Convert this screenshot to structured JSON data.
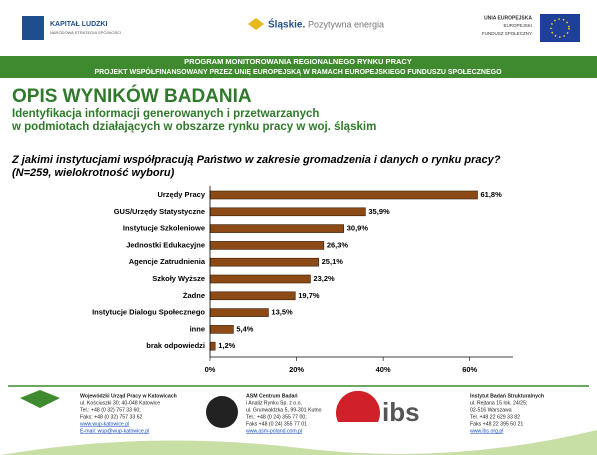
{
  "header": {
    "left_logo": [
      "KAPITAŁ LUDZKI",
      "NARODOWA STRATEGIA SPÓJNOŚCI"
    ],
    "center_logo": [
      "Śląskie.",
      "Pozytywna energia"
    ],
    "right_logo": [
      "UNIA EUROPEJSKA",
      "EUROPEJSKI",
      "FUNDUSZ SPOŁECZNY"
    ],
    "banner": [
      "PROGRAM MONITOROWANIA REGIONALNEGO RYNKU PRACY",
      "PROJEKT WSPÓŁFINANSOWANY PRZEZ UNIĘ EUROPEJSKĄ W RAMACH EUROPEJSKIEGO FUNDUSZU SPOŁECZNEGO"
    ],
    "title": "OPIS WYNIKÓW BADANIA",
    "subtitle": [
      "Identyfikacja informacji generowanych i przetwarzanych",
      "w podmiotach działających w obszarze rynku pracy w woj. śląskim"
    ]
  },
  "chart_data": {
    "type": "barh",
    "title": [
      "Z jakimi instytucjami współpracują Państwo w zakresie gromadzenia i danych o rynku pracy?",
      "(N=259, wielokrotność wyboru)"
    ],
    "categories": [
      "Urzędy Pracy",
      "GUS/Urzędy Statystyczne",
      "Instytucje Szkoleniowe",
      "Jednostki Edukacyjne",
      "Agencje Zatrudnienia",
      "Szkoły Wyższe",
      "Żadne",
      "Instytucje Dialogu Społecznego",
      "inne",
      "brak odpowiedzi"
    ],
    "values": [
      61.8,
      35.9,
      30.9,
      26.3,
      25.1,
      23.2,
      19.7,
      13.5,
      5.4,
      1.2
    ],
    "value_labels": [
      "61,8%",
      "35,9%",
      "30,9%",
      "26,3%",
      "25,1%",
      "23,2%",
      "19,7%",
      "13,5%",
      "5,4%",
      "1,2%"
    ],
    "color": "#8b4a16",
    "xlim": [
      0,
      70
    ],
    "xticks": [
      {
        "value": 0,
        "label": "0%"
      },
      {
        "value": 20,
        "label": "20%"
      },
      {
        "value": 40,
        "label": "40%"
      },
      {
        "value": 60,
        "label": "60%"
      }
    ],
    "grid": false
  },
  "footer": {
    "wup": [
      "Wojewódzki Urząd Pracy w Katowicach",
      "ul. Kościuszki 30; 40-048 Katowice",
      "Tel.: +48 (0 32) 757 33 60;",
      "Faks: +48 (0 32) 757 33 62",
      "www.wup-katowice.pl",
      "E-mail: wup@wup-katowice.pl"
    ],
    "asm": [
      "ASM Centrum Badań",
      "i Analiz Rynku Sp. z o.o.",
      "ul. Grunwaldzka 5, 99-301 Kutno",
      "Tel.: +48 (0 24) 355 77 00;",
      "Faks +48 (0 24) 355 77 01",
      "www.asm-poland.com.pl"
    ],
    "ibs_logo": "ibs",
    "ibs": [
      "Instytut Badań Strukturalnych",
      "ul. Rejtana 15 lok. 24/25;",
      "02-516 Warszawa",
      "Tel. +48 22 629 33 82",
      "Faks +48 22 395 50 21",
      "www.ibs.org.pl"
    ]
  }
}
